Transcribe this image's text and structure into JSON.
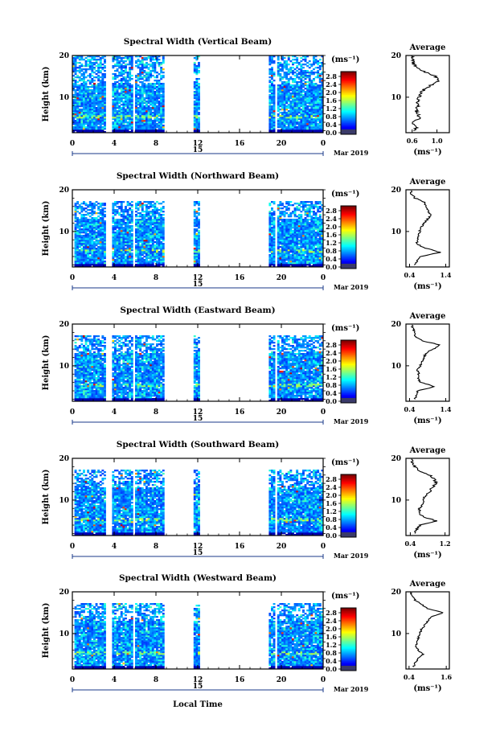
{
  "xlabel": "Local Time",
  "ylabel": "Height (km)",
  "date_day": "15",
  "date_label": "Mar 2019",
  "colorbar_unit": "(ms⁻¹)",
  "colorbar_ticks": [
    "2.8",
    "2.4",
    "2.0",
    "1.6",
    "1.2",
    "0.8",
    "0.4",
    "0.0"
  ],
  "avg_title": "Average",
  "avg_unit": "(ms⁻¹)",
  "chart_data": [
    {
      "type": "heatmap",
      "title": "Spectral Width (Vertical Beam)",
      "x_ticks": [
        "0",
        "4",
        "8",
        "12",
        "16",
        "20",
        "0"
      ],
      "y_ticks": [
        "20",
        "10"
      ],
      "xlim": [
        0,
        24
      ],
      "ylim": [
        1.5,
        20
      ],
      "zlim": [
        0,
        3.0
      ],
      "data_time_ranges": [
        [
          0,
          3.2
        ],
        [
          3.8,
          5.6
        ],
        [
          6,
          8.6
        ],
        [
          11.6,
          12.2
        ],
        [
          18.8,
          19.3
        ],
        [
          19.6,
          24
        ]
      ],
      "max_height_km": 20,
      "avg_x_ticks": [
        "0.6",
        "1.0"
      ],
      "avg_xlim": [
        0.5,
        1.2
      ],
      "avg_profile": [
        [
          2,
          0.62
        ],
        [
          3,
          0.68
        ],
        [
          4,
          0.6
        ],
        [
          5,
          0.72
        ],
        [
          6,
          0.7
        ],
        [
          7,
          0.66
        ],
        [
          8,
          0.7
        ],
        [
          9,
          0.68
        ],
        [
          10,
          0.72
        ],
        [
          11,
          0.74
        ],
        [
          12,
          0.8
        ],
        [
          13,
          0.92
        ],
        [
          14,
          1.02
        ],
        [
          15,
          0.98
        ],
        [
          16,
          0.82
        ],
        [
          17,
          0.7
        ],
        [
          18,
          0.62
        ],
        [
          19,
          0.6
        ],
        [
          20,
          0.6
        ]
      ]
    },
    {
      "type": "heatmap",
      "title": "Spectral Width (Northward Beam)",
      "x_ticks": [
        "0",
        "4",
        "8",
        "12",
        "16",
        "20",
        "0"
      ],
      "y_ticks": [
        "20",
        "10"
      ],
      "xlim": [
        0,
        24
      ],
      "ylim": [
        1.5,
        20
      ],
      "zlim": [
        0,
        3.0
      ],
      "data_time_ranges": [
        [
          0.2,
          3.2
        ],
        [
          3.8,
          5.6
        ],
        [
          6,
          8.6
        ],
        [
          11.6,
          12.2
        ],
        [
          18.8,
          19.3
        ],
        [
          19.6,
          24
        ]
      ],
      "max_height_km": 17,
      "avg_x_ticks": [
        "0.4",
        "1.4"
      ],
      "avg_xlim": [
        0.3,
        1.5
      ],
      "avg_profile": [
        [
          2,
          0.55
        ],
        [
          3,
          0.6
        ],
        [
          4,
          0.7
        ],
        [
          5,
          1.25
        ],
        [
          6,
          0.85
        ],
        [
          7,
          0.6
        ],
        [
          8,
          0.62
        ],
        [
          9,
          0.65
        ],
        [
          10,
          0.68
        ],
        [
          11,
          0.72
        ],
        [
          12,
          0.8
        ],
        [
          13,
          0.9
        ],
        [
          14,
          1.0
        ],
        [
          15,
          0.9
        ],
        [
          16,
          0.85
        ],
        [
          17,
          0.8
        ],
        [
          18,
          0.55
        ],
        [
          19,
          0.45
        ],
        [
          20,
          0.45
        ]
      ]
    },
    {
      "type": "heatmap",
      "title": "Spectral Width (Eastward Beam)",
      "x_ticks": [
        "0",
        "4",
        "8",
        "12",
        "16",
        "20",
        "0"
      ],
      "y_ticks": [
        "20",
        "10"
      ],
      "xlim": [
        0,
        24
      ],
      "ylim": [
        1.5,
        20
      ],
      "zlim": [
        0,
        3.0
      ],
      "data_time_ranges": [
        [
          0.2,
          3.2
        ],
        [
          3.8,
          5.6
        ],
        [
          6,
          8.6
        ],
        [
          11.6,
          12.2
        ],
        [
          18.8,
          19.3
        ],
        [
          19.6,
          24
        ]
      ],
      "max_height_km": 17,
      "avg_x_ticks": [
        "0.4",
        "1.4"
      ],
      "avg_xlim": [
        0.3,
        1.5
      ],
      "avg_profile": [
        [
          2,
          0.55
        ],
        [
          3,
          0.6
        ],
        [
          4,
          0.62
        ],
        [
          5,
          1.1
        ],
        [
          6,
          0.7
        ],
        [
          7,
          0.62
        ],
        [
          8,
          0.65
        ],
        [
          9,
          0.62
        ],
        [
          10,
          0.7
        ],
        [
          11,
          0.75
        ],
        [
          12,
          0.8
        ],
        [
          13,
          0.85
        ],
        [
          14,
          1.05
        ],
        [
          15,
          1.25
        ],
        [
          16,
          0.75
        ],
        [
          17,
          0.55
        ],
        [
          18,
          0.55
        ],
        [
          19,
          0.5
        ],
        [
          20,
          0.45
        ]
      ]
    },
    {
      "type": "heatmap",
      "title": "Spectral Width (Southward Beam)",
      "x_ticks": [
        "0",
        "4",
        "8",
        "12",
        "16",
        "20",
        "0"
      ],
      "y_ticks": [
        "20",
        "10"
      ],
      "xlim": [
        0,
        24
      ],
      "ylim": [
        1.5,
        20
      ],
      "zlim": [
        0,
        3.0
      ],
      "data_time_ranges": [
        [
          0.2,
          3.2
        ],
        [
          3.8,
          5.6
        ],
        [
          6,
          8.6
        ],
        [
          11.6,
          12.2
        ],
        [
          18.8,
          19.3
        ],
        [
          19.6,
          24
        ]
      ],
      "max_height_km": 17,
      "avg_x_ticks": [
        "0.4",
        "1.2"
      ],
      "avg_xlim": [
        0.3,
        1.3
      ],
      "avg_profile": [
        [
          2,
          0.5
        ],
        [
          3,
          0.55
        ],
        [
          4,
          0.62
        ],
        [
          5,
          1.0
        ],
        [
          6,
          0.7
        ],
        [
          7,
          0.6
        ],
        [
          8,
          0.62
        ],
        [
          9,
          0.68
        ],
        [
          10,
          0.7
        ],
        [
          11,
          0.75
        ],
        [
          12,
          0.85
        ],
        [
          13,
          0.9
        ],
        [
          14,
          1.0
        ],
        [
          15,
          0.95
        ],
        [
          16,
          0.85
        ],
        [
          17,
          0.6
        ],
        [
          18,
          0.5
        ],
        [
          19,
          0.45
        ],
        [
          20,
          0.42
        ]
      ]
    },
    {
      "type": "heatmap",
      "title": "Spectral Width (Westward Beam)",
      "x_ticks": [
        "0",
        "4",
        "8",
        "12",
        "16",
        "20",
        "0"
      ],
      "y_ticks": [
        "20",
        "10"
      ],
      "xlim": [
        0,
        24
      ],
      "ylim": [
        1.5,
        20
      ],
      "zlim": [
        0,
        3.0
      ],
      "data_time_ranges": [
        [
          0.2,
          3.2
        ],
        [
          3.8,
          5.6
        ],
        [
          6,
          8.6
        ],
        [
          11.6,
          12.2
        ],
        [
          18.8,
          19.3
        ],
        [
          19.6,
          24
        ]
      ],
      "max_height_km": 17,
      "avg_x_ticks": [
        "0.4",
        "1.6"
      ],
      "avg_xlim": [
        0.3,
        1.7
      ],
      "avg_profile": [
        [
          2,
          0.55
        ],
        [
          3,
          0.6
        ],
        [
          4,
          0.7
        ],
        [
          5,
          0.85
        ],
        [
          6,
          0.7
        ],
        [
          7,
          0.62
        ],
        [
          8,
          0.65
        ],
        [
          9,
          0.7
        ],
        [
          10,
          0.75
        ],
        [
          11,
          0.8
        ],
        [
          12,
          0.9
        ],
        [
          13,
          1.0
        ],
        [
          14,
          1.1
        ],
        [
          15,
          1.5
        ],
        [
          16,
          1.0
        ],
        [
          17,
          0.8
        ],
        [
          18,
          0.6
        ],
        [
          19,
          0.5
        ],
        [
          20,
          0.45
        ]
      ]
    }
  ]
}
